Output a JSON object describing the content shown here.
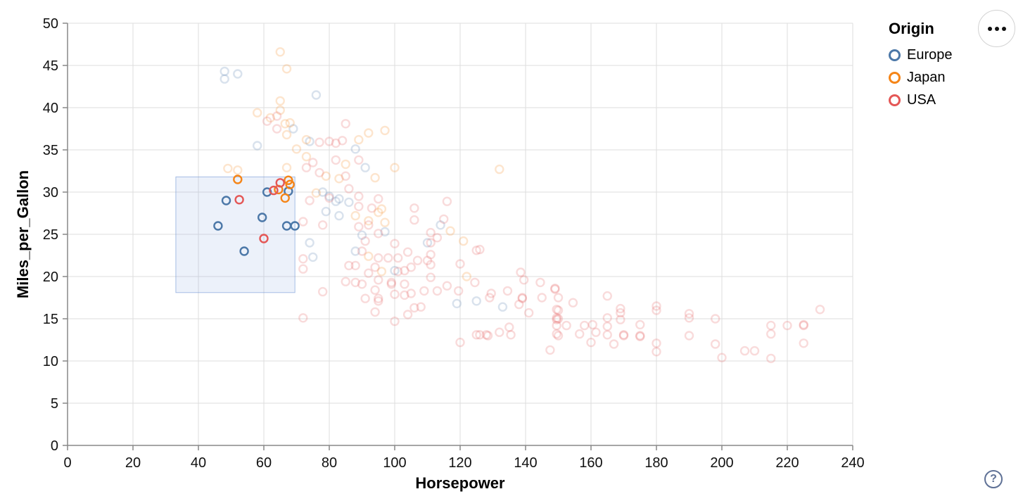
{
  "controls": {
    "menu_button_tooltip": "options",
    "help_label": "?"
  },
  "legend": {
    "title": "Origin",
    "items": [
      {
        "label": "Europe",
        "color": "#4c78a8"
      },
      {
        "label": "Japan",
        "color": "#f58518"
      },
      {
        "label": "USA",
        "color": "#e45756"
      }
    ]
  },
  "chart_data": {
    "type": "scatter",
    "title": "",
    "xlabel": "Horsepower",
    "ylabel": "Miles_per_Gallon",
    "xlim": [
      0,
      240
    ],
    "ylim": [
      0,
      50
    ],
    "xticks": [
      0,
      20,
      40,
      60,
      80,
      100,
      120,
      140,
      160,
      180,
      200,
      220,
      240
    ],
    "yticks": [
      0,
      5,
      10,
      15,
      20,
      25,
      30,
      35,
      40,
      45,
      50
    ],
    "grid": true,
    "legend_position": "top-right",
    "colors": {
      "Europe": "#4c78a8",
      "Japan": "#f58518",
      "USA": "#e45756"
    },
    "grid_color": "#dedede",
    "axis_color": "#888888",
    "label_color": "#111111",
    "unselected_opacity": 0.21,
    "point_radius": 5.5,
    "point_stroke_width": 2.4,
    "brush": {
      "x": [
        33.1,
        69.5
      ],
      "y": [
        18.1,
        31.8
      ],
      "fill": "rgba(100,140,210,0.12)",
      "stroke": "rgba(100,140,210,0.55)"
    },
    "origin_codes": {
      "E": "Europe",
      "J": "Japan",
      "U": "USA"
    },
    "points_format": [
      "horsepower",
      "miles_per_gallon",
      "origin_code",
      "selected"
    ],
    "points": [
      [
        46,
        26,
        "E",
        1
      ],
      [
        48.5,
        29,
        "E",
        1
      ],
      [
        54,
        23,
        "E",
        1
      ],
      [
        59.5,
        27,
        "E",
        1
      ],
      [
        61,
        30,
        "E",
        1
      ],
      [
        67.5,
        30.1,
        "E",
        1
      ],
      [
        67,
        26,
        "E",
        1
      ],
      [
        69.5,
        26,
        "E",
        1
      ],
      [
        52,
        31.5,
        "J",
        1
      ],
      [
        64.5,
        30.3,
        "J",
        1
      ],
      [
        66.5,
        29.3,
        "J",
        1
      ],
      [
        67.5,
        31.4,
        "J",
        1
      ],
      [
        68,
        30.9,
        "J",
        1
      ],
      [
        52.5,
        29.1,
        "U",
        1
      ],
      [
        60,
        24.5,
        "U",
        1
      ],
      [
        63,
        30.2,
        "U",
        1
      ],
      [
        65,
        31.1,
        "U",
        1
      ],
      [
        48,
        44.3,
        "E",
        0
      ],
      [
        48,
        43.4,
        "E",
        0
      ],
      [
        52,
        44,
        "E",
        0
      ],
      [
        76,
        41.5,
        "E",
        0
      ],
      [
        69,
        37.5,
        "E",
        0
      ],
      [
        74,
        36,
        "E",
        0
      ],
      [
        88,
        35.1,
        "E",
        0
      ],
      [
        58,
        35.5,
        "E",
        0
      ],
      [
        91,
        32.9,
        "E",
        0
      ],
      [
        78,
        30,
        "E",
        0
      ],
      [
        80,
        29.5,
        "E",
        0
      ],
      [
        82,
        28.9,
        "E",
        0
      ],
      [
        83,
        29.2,
        "E",
        0
      ],
      [
        86,
        28.8,
        "E",
        0
      ],
      [
        79,
        27.7,
        "E",
        0
      ],
      [
        83,
        27.2,
        "E",
        0
      ],
      [
        90,
        24.9,
        "E",
        0
      ],
      [
        74,
        24,
        "E",
        0
      ],
      [
        88,
        23,
        "E",
        0
      ],
      [
        75,
        22.3,
        "E",
        0
      ],
      [
        97,
        25.3,
        "E",
        0
      ],
      [
        100,
        20.7,
        "E",
        0
      ],
      [
        110,
        24,
        "E",
        0
      ],
      [
        114,
        26.1,
        "E",
        0
      ],
      [
        119,
        16.8,
        "E",
        0
      ],
      [
        125,
        17.1,
        "E",
        0
      ],
      [
        133,
        16.4,
        "E",
        0
      ],
      [
        65,
        46.6,
        "J",
        0
      ],
      [
        67,
        44.6,
        "J",
        0
      ],
      [
        65,
        40.8,
        "J",
        0
      ],
      [
        58,
        39.4,
        "J",
        0
      ],
      [
        62,
        38.8,
        "J",
        0
      ],
      [
        65,
        39.7,
        "J",
        0
      ],
      [
        66.5,
        38.1,
        "J",
        0
      ],
      [
        68,
        38.2,
        "J",
        0
      ],
      [
        92,
        37,
        "J",
        0
      ],
      [
        89,
        36.2,
        "J",
        0
      ],
      [
        97,
        37.3,
        "J",
        0
      ],
      [
        70,
        35.1,
        "J",
        0
      ],
      [
        73,
        36.2,
        "J",
        0
      ],
      [
        73,
        34.2,
        "J",
        0
      ],
      [
        67,
        36.8,
        "J",
        0
      ],
      [
        85,
        33.3,
        "J",
        0
      ],
      [
        79,
        31.9,
        "J",
        0
      ],
      [
        49,
        32.8,
        "J",
        0
      ],
      [
        52,
        32.6,
        "J",
        0
      ],
      [
        67,
        32.9,
        "J",
        0
      ],
      [
        100,
        32.9,
        "J",
        0
      ],
      [
        94,
        31.7,
        "J",
        0
      ],
      [
        83,
        31.6,
        "J",
        0
      ],
      [
        76,
        29.9,
        "J",
        0
      ],
      [
        88,
        27.2,
        "J",
        0
      ],
      [
        95,
        27.6,
        "J",
        0
      ],
      [
        97,
        26.4,
        "J",
        0
      ],
      [
        96,
        28,
        "J",
        0
      ],
      [
        92,
        26.6,
        "J",
        0
      ],
      [
        117,
        25.4,
        "J",
        0
      ],
      [
        121,
        24.2,
        "J",
        0
      ],
      [
        122,
        20,
        "J",
        0
      ],
      [
        132,
        32.7,
        "J",
        0
      ],
      [
        92,
        22.4,
        "J",
        0
      ],
      [
        96,
        20.6,
        "J",
        0
      ],
      [
        85,
        38.1,
        "U",
        0
      ],
      [
        80,
        36,
        "U",
        0
      ],
      [
        84,
        36.1,
        "U",
        0
      ],
      [
        64,
        39,
        "U",
        0
      ],
      [
        61,
        38.4,
        "U",
        0
      ],
      [
        64,
        37.5,
        "U",
        0
      ],
      [
        77,
        35.9,
        "U",
        0
      ],
      [
        82,
        35.8,
        "U",
        0
      ],
      [
        82,
        33.8,
        "U",
        0
      ],
      [
        89,
        33.8,
        "U",
        0
      ],
      [
        73,
        32.9,
        "U",
        0
      ],
      [
        85,
        31.9,
        "U",
        0
      ],
      [
        77,
        32.3,
        "U",
        0
      ],
      [
        75,
        33.5,
        "U",
        0
      ],
      [
        86,
        30.4,
        "U",
        0
      ],
      [
        89,
        29.5,
        "U",
        0
      ],
      [
        74,
        29,
        "U",
        0
      ],
      [
        80,
        29.3,
        "U",
        0
      ],
      [
        89,
        28.3,
        "U",
        0
      ],
      [
        93,
        28.1,
        "U",
        0
      ],
      [
        95,
        29.2,
        "U",
        0
      ],
      [
        106,
        28.1,
        "U",
        0
      ],
      [
        106,
        26.7,
        "U",
        0
      ],
      [
        116,
        28.9,
        "U",
        0
      ],
      [
        115,
        26.8,
        "U",
        0
      ],
      [
        72,
        26.5,
        "U",
        0
      ],
      [
        78,
        26.1,
        "U",
        0
      ],
      [
        89,
        25.9,
        "U",
        0
      ],
      [
        92,
        26.1,
        "U",
        0
      ],
      [
        91,
        24.2,
        "U",
        0
      ],
      [
        90,
        23,
        "U",
        0
      ],
      [
        95,
        25.1,
        "U",
        0
      ],
      [
        100,
        23.9,
        "U",
        0
      ],
      [
        95,
        22.2,
        "U",
        0
      ],
      [
        98,
        22.2,
        "U",
        0
      ],
      [
        101,
        22.2,
        "U",
        0
      ],
      [
        104,
        22.9,
        "U",
        0
      ],
      [
        107,
        21.9,
        "U",
        0
      ],
      [
        111,
        25.2,
        "U",
        0
      ],
      [
        111,
        24,
        "U",
        0
      ],
      [
        111,
        22.6,
        "U",
        0
      ],
      [
        111,
        21.4,
        "U",
        0
      ],
      [
        111,
        19.9,
        "U",
        0
      ],
      [
        113,
        24.6,
        "U",
        0
      ],
      [
        126,
        23.2,
        "U",
        0
      ],
      [
        125,
        23.1,
        "U",
        0
      ],
      [
        88,
        21.3,
        "U",
        0
      ],
      [
        86,
        21.3,
        "U",
        0
      ],
      [
        92,
        20.4,
        "U",
        0
      ],
      [
        94,
        21.1,
        "U",
        0
      ],
      [
        95,
        19.6,
        "U",
        0
      ],
      [
        94,
        18.4,
        "U",
        0
      ],
      [
        95,
        17.1,
        "U",
        0
      ],
      [
        88,
        19.3,
        "U",
        0
      ],
      [
        90,
        19.1,
        "U",
        0
      ],
      [
        85,
        19.4,
        "U",
        0
      ],
      [
        101,
        20.6,
        "U",
        0
      ],
      [
        103,
        20.7,
        "U",
        0
      ],
      [
        105,
        21.1,
        "U",
        0
      ],
      [
        99,
        19.3,
        "U",
        0
      ],
      [
        99,
        19.1,
        "U",
        0
      ],
      [
        103,
        19.1,
        "U",
        0
      ],
      [
        109,
        18.3,
        "U",
        0
      ],
      [
        100,
        17.9,
        "U",
        0
      ],
      [
        103,
        17.8,
        "U",
        0
      ],
      [
        95,
        17.4,
        "U",
        0
      ],
      [
        91,
        17.4,
        "U",
        0
      ],
      [
        113,
        18.3,
        "U",
        0
      ],
      [
        116,
        18.9,
        "U",
        0
      ],
      [
        78,
        18.2,
        "U",
        0
      ],
      [
        110,
        21.9,
        "U",
        0
      ],
      [
        72,
        22.1,
        "U",
        0
      ],
      [
        72,
        20.9,
        "U",
        0
      ],
      [
        72,
        15.1,
        "U",
        0
      ],
      [
        94,
        15.8,
        "U",
        0
      ],
      [
        100,
        14.7,
        "U",
        0
      ],
      [
        105,
        18,
        "U",
        0
      ],
      [
        106,
        16.3,
        "U",
        0
      ],
      [
        104,
        15.5,
        "U",
        0
      ],
      [
        108,
        16.4,
        "U",
        0
      ],
      [
        120,
        21.5,
        "U",
        0
      ],
      [
        124.5,
        19.3,
        "U",
        0
      ],
      [
        119.5,
        18.3,
        "U",
        0
      ],
      [
        129.5,
        18,
        "U",
        0
      ],
      [
        134.5,
        18.3,
        "U",
        0
      ],
      [
        129,
        17.5,
        "U",
        0
      ],
      [
        138.5,
        20.5,
        "U",
        0
      ],
      [
        139.5,
        19.6,
        "U",
        0
      ],
      [
        139,
        17.5,
        "U",
        0
      ],
      [
        139,
        17.4,
        "U",
        0
      ],
      [
        138,
        16.7,
        "U",
        0
      ],
      [
        141,
        15.7,
        "U",
        0
      ],
      [
        144.5,
        19.3,
        "U",
        0
      ],
      [
        145,
        17.5,
        "U",
        0
      ],
      [
        149,
        18.6,
        "U",
        0
      ],
      [
        149,
        18.5,
        "U",
        0
      ],
      [
        150,
        17.5,
        "U",
        0
      ],
      [
        154.5,
        16.9,
        "U",
        0
      ],
      [
        149.5,
        16.1,
        "U",
        0
      ],
      [
        150,
        16,
        "U",
        0
      ],
      [
        149.5,
        15.1,
        "U",
        0
      ],
      [
        150,
        15,
        "U",
        0
      ],
      [
        149.5,
        14.9,
        "U",
        0
      ],
      [
        149.5,
        14.2,
        "U",
        0
      ],
      [
        149.5,
        13.2,
        "U",
        0
      ],
      [
        150,
        13,
        "U",
        0
      ],
      [
        152.5,
        14.2,
        "U",
        0
      ],
      [
        156.5,
        13.2,
        "U",
        0
      ],
      [
        158,
        14.2,
        "U",
        0
      ],
      [
        160.5,
        14.3,
        "U",
        0
      ],
      [
        160,
        12.2,
        "U",
        0
      ],
      [
        161.5,
        13.4,
        "U",
        0
      ],
      [
        147.5,
        11.3,
        "U",
        0
      ],
      [
        128,
        13.1,
        "U",
        0
      ],
      [
        128.5,
        13,
        "U",
        0
      ],
      [
        125,
        13.1,
        "U",
        0
      ],
      [
        126,
        13.1,
        "U",
        0
      ],
      [
        135,
        14,
        "U",
        0
      ],
      [
        135.5,
        13.1,
        "U",
        0
      ],
      [
        132,
        13.4,
        "U",
        0
      ],
      [
        120,
        12.2,
        "U",
        0
      ],
      [
        165,
        17.7,
        "U",
        0
      ],
      [
        169,
        16.2,
        "U",
        0
      ],
      [
        169,
        15.7,
        "U",
        0
      ],
      [
        169,
        14.9,
        "U",
        0
      ],
      [
        165,
        15.1,
        "U",
        0
      ],
      [
        165,
        14.1,
        "U",
        0
      ],
      [
        165,
        13.1,
        "U",
        0
      ],
      [
        170,
        13.1,
        "U",
        0
      ],
      [
        170,
        13,
        "U",
        0
      ],
      [
        175,
        14.3,
        "U",
        0
      ],
      [
        175,
        13,
        "U",
        0
      ],
      [
        175,
        12.9,
        "U",
        0
      ],
      [
        167,
        12,
        "U",
        0
      ],
      [
        180,
        16.5,
        "U",
        0
      ],
      [
        180,
        16,
        "U",
        0
      ],
      [
        180,
        12.1,
        "U",
        0
      ],
      [
        180,
        11.1,
        "U",
        0
      ],
      [
        190,
        15.6,
        "U",
        0
      ],
      [
        190,
        15.1,
        "U",
        0
      ],
      [
        190,
        13,
        "U",
        0
      ],
      [
        198,
        15,
        "U",
        0
      ],
      [
        198,
        12,
        "U",
        0
      ],
      [
        200,
        10.4,
        "U",
        0
      ],
      [
        207,
        11.2,
        "U",
        0
      ],
      [
        210,
        11.2,
        "U",
        0
      ],
      [
        215,
        14.2,
        "U",
        0
      ],
      [
        215,
        13.2,
        "U",
        0
      ],
      [
        215,
        10.3,
        "U",
        0
      ],
      [
        220,
        14.2,
        "U",
        0
      ],
      [
        225,
        14.3,
        "U",
        0
      ],
      [
        225,
        14.2,
        "U",
        0
      ],
      [
        225,
        12.1,
        "U",
        0
      ],
      [
        230,
        16.1,
        "U",
        0
      ]
    ]
  }
}
